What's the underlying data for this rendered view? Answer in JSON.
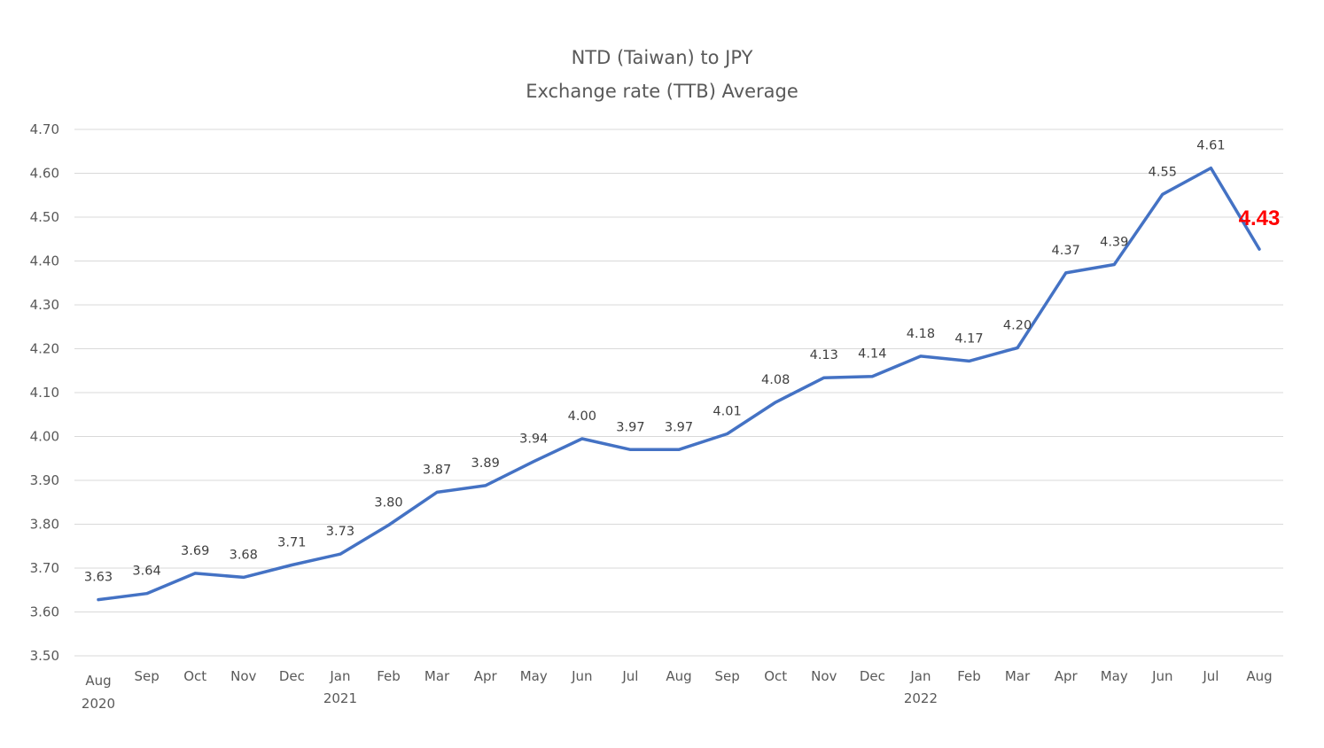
{
  "chart_data": {
    "type": "line",
    "title": "NTD (Taiwan) to JPY",
    "subtitle": "Exchange rate (TTB) Average",
    "xlabel": "",
    "ylabel": "",
    "ylim": [
      3.5,
      4.7
    ],
    "ytick_step": 0.1,
    "ytick_labels": [
      "3.50",
      "3.60",
      "3.70",
      "3.80",
      "3.90",
      "4.00",
      "4.10",
      "4.20",
      "4.30",
      "4.40",
      "4.50",
      "4.60",
      "4.70"
    ],
    "grid": true,
    "legend": "none",
    "categories": [
      "Aug",
      "Sep",
      "Oct",
      "Nov",
      "Dec",
      "Jan",
      "Feb",
      "Mar",
      "Apr",
      "May",
      "Jun",
      "Jul",
      "Aug",
      "Sep",
      "Oct",
      "Nov",
      "Dec",
      "Jan",
      "Feb",
      "Mar",
      "Apr",
      "May",
      "Jun",
      "Jul",
      "Aug"
    ],
    "year_labels": [
      {
        "index": 0,
        "label": "2020"
      },
      {
        "index": 5,
        "label": "2021"
      },
      {
        "index": 17,
        "label": "2022"
      }
    ],
    "series": [
      {
        "color": "#4472C4",
        "values": [
          3.628,
          3.642,
          3.688,
          3.679,
          3.707,
          3.732,
          3.798,
          3.873,
          3.888,
          3.943,
          3.995,
          3.97,
          3.97,
          4.006,
          4.078,
          4.134,
          4.137,
          4.183,
          4.172,
          4.202,
          4.373,
          4.392,
          4.552,
          4.612,
          4.427
        ],
        "data_labels": [
          "3.63",
          "3.64",
          "3.69",
          "3.68",
          "3.71",
          "3.73",
          "3.80",
          "3.87",
          "3.89",
          "3.94",
          "4.00",
          "3.97",
          "3.97",
          "4.01",
          "4.08",
          "4.13",
          "4.14",
          "4.18",
          "4.17",
          "4.20",
          "4.37",
          "4.39",
          "4.55",
          "4.61",
          "4.43"
        ]
      }
    ],
    "highlight": {
      "index": 24,
      "label": "4.43",
      "color": "#FF0000"
    },
    "colors": {
      "title": "#595959",
      "ticks": "#595959",
      "data_labels": "#404040",
      "grid": "#D9D9D9"
    }
  }
}
